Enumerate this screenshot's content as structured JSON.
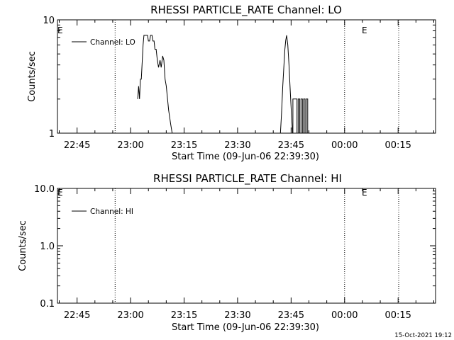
{
  "chart_data": [
    {
      "type": "line",
      "title": "RHESSI PARTICLE_RATE Channel: LO",
      "xlabel": "Start Time (09-Jun-06 22:39:30)",
      "ylabel": "Counts/sec",
      "yscale": "log",
      "ylim": [
        1,
        10
      ],
      "xlim": [
        "22:39:30",
        "00:25:30"
      ],
      "x_ticks": [
        "22:45",
        "23:00",
        "23:15",
        "23:30",
        "23:45",
        "00:00",
        "00:15"
      ],
      "y_ticks": [
        "1",
        "10"
      ],
      "legend": {
        "position": "top-left",
        "entries": [
          "Channel: LO"
        ]
      },
      "markers": [
        "E",
        "E"
      ],
      "vlines": [
        "22:55:40",
        "00:00:00",
        "00:15:10"
      ],
      "series": [
        {
          "name": "Channel: LO",
          "points": [
            [
              "23:02:00",
              2.0
            ],
            [
              "23:02:15",
              2.6
            ],
            [
              "23:02:30",
              2.0
            ],
            [
              "23:02:45",
              3.0
            ],
            [
              "23:03:00",
              3.0
            ],
            [
              "23:03:30",
              6.0
            ],
            [
              "23:03:45",
              7.3
            ],
            [
              "23:04:15",
              7.3
            ],
            [
              "23:04:45",
              7.3
            ],
            [
              "23:05:00",
              6.5
            ],
            [
              "23:05:20",
              6.5
            ],
            [
              "23:05:35",
              7.3
            ],
            [
              "23:06:00",
              7.3
            ],
            [
              "23:06:15",
              6.5
            ],
            [
              "23:06:35",
              6.5
            ],
            [
              "23:06:50",
              5.5
            ],
            [
              "23:07:10",
              5.5
            ],
            [
              "23:07:30",
              4.4
            ],
            [
              "23:07:50",
              3.8
            ],
            [
              "23:08:15",
              4.4
            ],
            [
              "23:08:35",
              3.8
            ],
            [
              "23:09:00",
              4.8
            ],
            [
              "23:09:20",
              4.4
            ],
            [
              "23:09:40",
              3.0
            ],
            [
              "23:10:00",
              2.6
            ],
            [
              "23:10:40",
              1.6
            ],
            [
              "23:11:15",
              1.2
            ],
            [
              "23:11:40",
              1.0
            ]
          ]
        },
        {
          "name": "Channel: LO",
          "points": [
            [
              "23:42:00",
              1.0
            ],
            [
              "23:42:20",
              1.5
            ],
            [
              "23:42:40",
              2.6
            ],
            [
              "23:43:00",
              4.0
            ],
            [
              "23:43:15",
              5.5
            ],
            [
              "23:43:30",
              6.6
            ],
            [
              "23:43:45",
              7.3
            ],
            [
              "23:44:05",
              6.0
            ],
            [
              "23:44:25",
              4.0
            ],
            [
              "23:44:45",
              2.4
            ],
            [
              "23:45:05",
              1.5
            ],
            [
              "23:45:25",
              1.0
            ]
          ]
        },
        {
          "name": "Channel: LO",
          "points": [
            [
              "23:45:30",
              1.0
            ],
            [
              "23:45:30",
              2.0
            ],
            [
              "23:46:40",
              2.0
            ],
            [
              "23:46:40",
              1.0
            ],
            [
              "23:47:00",
              1.0
            ],
            [
              "23:47:00",
              2.0
            ],
            [
              "23:47:25",
              2.0
            ],
            [
              "23:47:25",
              1.0
            ],
            [
              "23:47:45",
              1.0
            ],
            [
              "23:47:45",
              2.0
            ],
            [
              "23:48:10",
              2.0
            ],
            [
              "23:48:10",
              1.0
            ],
            [
              "23:48:30",
              1.0
            ],
            [
              "23:48:30",
              2.0
            ],
            [
              "23:48:55",
              2.0
            ],
            [
              "23:48:55",
              1.0
            ],
            [
              "23:49:15",
              1.0
            ],
            [
              "23:49:15",
              2.0
            ],
            [
              "23:49:40",
              2.0
            ],
            [
              "23:49:40",
              1.0
            ]
          ]
        }
      ]
    },
    {
      "type": "line",
      "title": "RHESSI PARTICLE_RATE Channel: HI",
      "xlabel": "Start Time (09-Jun-06 22:39:30)",
      "ylabel": "Counts/sec",
      "yscale": "log",
      "ylim": [
        0.1,
        10
      ],
      "xlim": [
        "22:39:30",
        "00:25:30"
      ],
      "x_ticks": [
        "22:45",
        "23:00",
        "23:15",
        "23:30",
        "23:45",
        "00:00",
        "00:15"
      ],
      "y_ticks": [
        "0.1",
        "1.0",
        "10.0"
      ],
      "legend": {
        "position": "top-left",
        "entries": [
          "Channel: HI"
        ]
      },
      "markers": [
        "E",
        "E"
      ],
      "vlines": [
        "22:55:40",
        "00:00:00",
        "00:15:10"
      ],
      "series": []
    }
  ],
  "footer": {
    "timestamp": "15-Oct-2021 19:12"
  }
}
